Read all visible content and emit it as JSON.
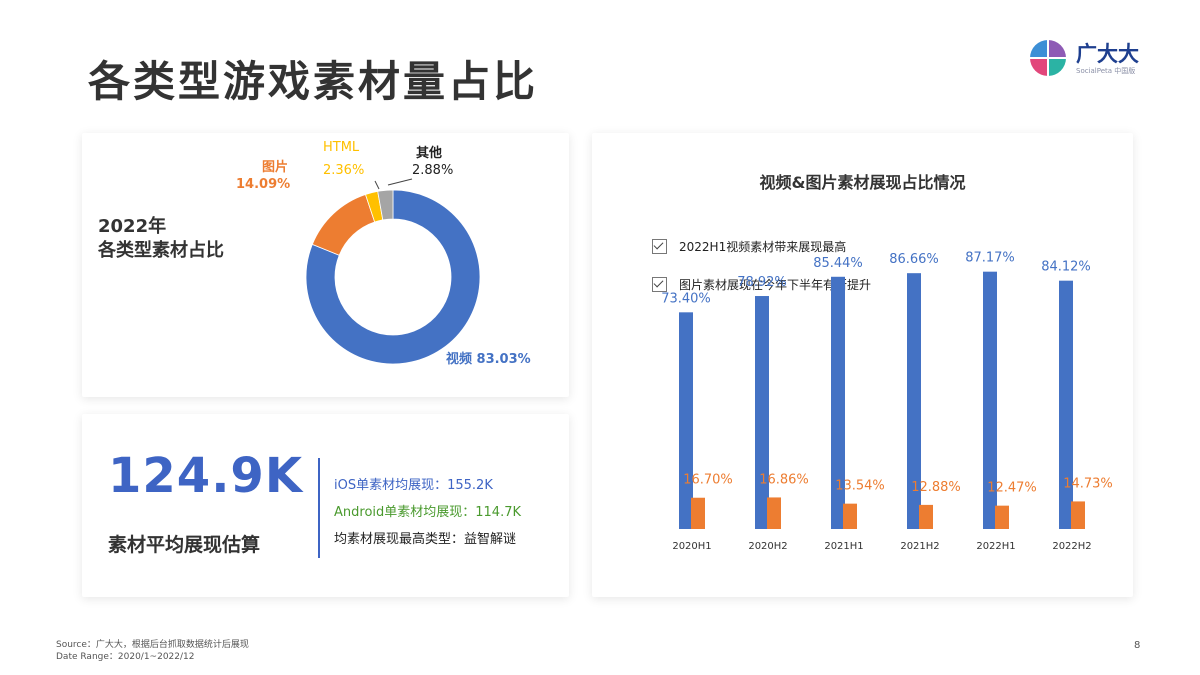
{
  "page": {
    "title": "各类型游戏素材量占比",
    "page_number": "8",
    "source": "Source：广大大，根据后台抓取数据统计后展现",
    "date_range": "Date Range：2020/1~2022/12"
  },
  "logo": {
    "name": "广大大",
    "sub": "SocialPeta 中国版"
  },
  "colors": {
    "blue": "#4472c4",
    "orange": "#ed7d31",
    "yellow": "#ffc000",
    "gray": "#a5a5a5",
    "accent": "#3e64c4",
    "green": "#4a9a2e"
  },
  "donut": {
    "title_line1": "2022年",
    "title_line2": "各类型素材占比",
    "labels": {
      "video": "视频 83.03%",
      "image_name": "图片",
      "image_value": "14.09%",
      "html_name": "HTML",
      "html_value": "2.36%",
      "other_name": "其他",
      "other_value": "2.88%"
    }
  },
  "stats": {
    "big_number": "124.9K",
    "big_label": "素材平均展现估算",
    "ios": "iOS单素材均展现：155.2K",
    "android": "Android单素材均展现：114.7K",
    "top_type": "均素材展现最高类型：益智解谜"
  },
  "bar_panel": {
    "title": "视频&图片素材展现占比情况",
    "notes": [
      "2022H1视频素材带来展现最高",
      "图片素材展现在今年下半年有所提升"
    ]
  },
  "chart_data": [
    {
      "type": "pie",
      "title": "2022年 各类型素材占比",
      "categories": [
        "视频",
        "图片",
        "HTML",
        "其他"
      ],
      "values": [
        83.03,
        14.09,
        2.36,
        2.88
      ],
      "value_labels": [
        "83.03%",
        "14.09%",
        "2.36%",
        "2.88%"
      ],
      "colors": [
        "#4472c4",
        "#ed7d31",
        "#ffc000",
        "#a5a5a5"
      ],
      "donut": true
    },
    {
      "type": "bar",
      "title": "视频&图片素材展现占比情况",
      "categories": [
        "2020H1",
        "2020H2",
        "2021H1",
        "2021H2",
        "2022H1",
        "2022H2"
      ],
      "series": [
        {
          "values": [
            73.4,
            78.92,
            85.44,
            86.66,
            87.17,
            84.12
          ],
          "labels": [
            "73.40%",
            "78.92%",
            "85.44%",
            "86.66%",
            "87.17%",
            "84.12%"
          ],
          "color": "#4472c4"
        },
        {
          "values": [
            16.7,
            16.86,
            13.54,
            12.88,
            12.47,
            14.73
          ],
          "labels": [
            "16.70%",
            "16.86%",
            "13.54%",
            "12.88%",
            "12.47%",
            "14.73%"
          ],
          "color": "#ed7d31"
        }
      ],
      "ylim": [
        0,
        100
      ],
      "grid": false,
      "legend": "none"
    }
  ]
}
